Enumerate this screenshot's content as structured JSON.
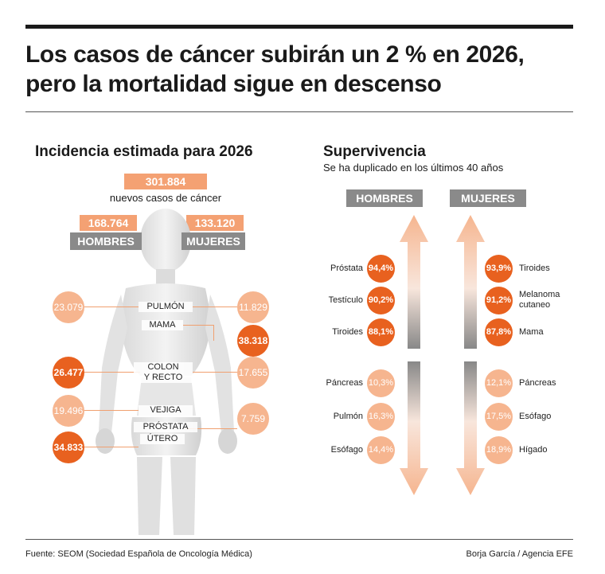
{
  "title_line1": "Los casos de cáncer subirán un 2 % en 2026,",
  "title_line2": "pero la mortalidad sigue en descenso",
  "incidence": {
    "heading": "Incidencia estimada para 2026",
    "total": "301.884",
    "total_label": "nuevos casos de cáncer",
    "men_total": "168.764",
    "women_total": "133.120",
    "men_label": "HOMBRES",
    "women_label": "MUJERES",
    "organs": [
      {
        "name": "PULMÓN",
        "men": "23.079",
        "women": "11.829"
      },
      {
        "name": "MAMA",
        "men": "",
        "women": "38.318"
      },
      {
        "name_line1": "COLON",
        "name_line2": "Y RECTO",
        "men": "26.477",
        "women": "17.655"
      },
      {
        "name": "VEJIGA",
        "men": "19.496",
        "women": ""
      },
      {
        "name": "PRÓSTATA",
        "men": "34.833",
        "women": ""
      },
      {
        "name": "ÚTERO",
        "men": "",
        "women": "7.759"
      }
    ]
  },
  "survival": {
    "heading": "Supervivencia",
    "subheading": "Se ha duplicado en los últimos 40 años",
    "men_label": "HOMBRES",
    "women_label": "MUJERES",
    "men_high": [
      {
        "label": "Próstata",
        "value": "94,4%"
      },
      {
        "label": "Testículo",
        "value": "90,2%"
      },
      {
        "label": "Tiroides",
        "value": "88,1%"
      }
    ],
    "men_low": [
      {
        "label": "Páncreas",
        "value": "10,3%"
      },
      {
        "label": "Pulmón",
        "value": "16,3%"
      },
      {
        "label": "Esófago",
        "value": "14,4%"
      }
    ],
    "women_high": [
      {
        "label": "Tiroides",
        "value": "93,9%"
      },
      {
        "label_line1": "Melanoma",
        "label_line2": "cutaneo",
        "value": "91,2%"
      },
      {
        "label": "Mama",
        "value": "87,8%"
      }
    ],
    "women_low": [
      {
        "label": "Páncreas",
        "value": "12,1%"
      },
      {
        "label": "Esófago",
        "value": "17,5%"
      },
      {
        "label": "Hígado",
        "value": "18,9%"
      }
    ]
  },
  "footer": {
    "source": "Fuente: SEOM (Sociedad Española de Oncología Médica)",
    "credit": "Borja García / Agencia EFE"
  },
  "colors": {
    "accent_light": "#f6b58f",
    "accent_dark": "#e8611f",
    "gray": "#8a8a8a"
  }
}
